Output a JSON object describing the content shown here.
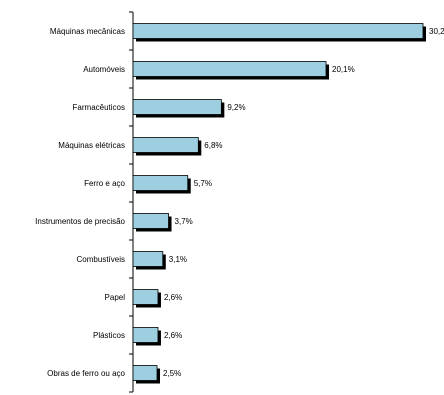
{
  "chart_data": {
    "type": "bar",
    "orientation": "horizontal",
    "categories": [
      "Máquinas mecânicas",
      "Automóveis",
      "Farmacêuticos",
      "Máquinas elétricas",
      "Ferro e aço",
      "Instrumentos de precisão",
      "Combustíveis",
      "Papel",
      "Plásticos",
      "Obras de ferro ou aço"
    ],
    "values": [
      30.2,
      20.1,
      9.2,
      6.8,
      5.7,
      3.7,
      3.1,
      2.6,
      2.6,
      2.5
    ],
    "value_labels": [
      "30,2",
      "20,1%",
      "9,2%",
      "6,8%",
      "5,7%",
      "3,7%",
      "3,1%",
      "2,6%",
      "2,6%",
      "2,5%"
    ],
    "title": "",
    "xlabel": "",
    "ylabel": "",
    "xlim": [
      0,
      31
    ],
    "grid": false,
    "legend": "none",
    "colors": {
      "bar": "#9dcfe0",
      "bar_stroke": "#000000",
      "shadow": "#000000",
      "axis": "#000000"
    }
  }
}
